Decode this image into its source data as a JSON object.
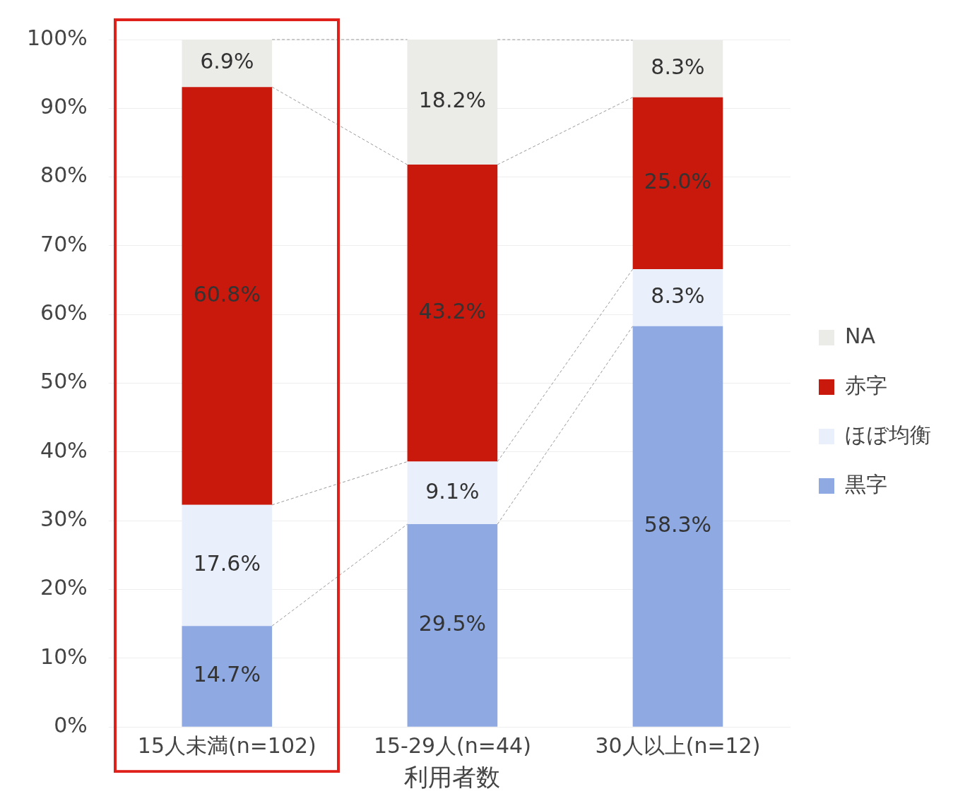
{
  "chart_data": {
    "type": "bar",
    "stacked": true,
    "xlabel": "利用者数",
    "categories": [
      "15人未満(n=102)",
      "15-29人(n=44)",
      "30人以上(n=12)"
    ],
    "series": [
      {
        "name": "黒字",
        "color": "#8fa9e2",
        "values": [
          14.7,
          29.5,
          58.3
        ],
        "value_labels": [
          "14.7%",
          "29.5%",
          "58.3%"
        ]
      },
      {
        "name": "ほぼ均衡",
        "color": "#e9effb",
        "values": [
          17.6,
          9.1,
          8.3
        ],
        "value_labels": [
          "17.6%",
          "9.1%",
          "8.3%"
        ]
      },
      {
        "name": "赤字",
        "color": "#c8190c",
        "values": [
          60.8,
          43.2,
          25.0
        ],
        "value_labels": [
          "60.8%",
          "43.2%",
          "25.0%"
        ]
      },
      {
        "name": "NA",
        "color": "#ebebe8",
        "values": [
          6.9,
          18.2,
          8.3
        ],
        "value_labels": [
          "6.9%",
          "18.2%",
          "8.3%"
        ]
      }
    ],
    "ylim": [
      0,
      100
    ],
    "yticks": [
      {
        "value": 0,
        "label": "0%"
      },
      {
        "value": 10,
        "label": "10%"
      },
      {
        "value": 20,
        "label": "20%"
      },
      {
        "value": 30,
        "label": "30%"
      },
      {
        "value": 40,
        "label": "40%"
      },
      {
        "value": 50,
        "label": "50%"
      },
      {
        "value": 60,
        "label": "60%"
      },
      {
        "value": 70,
        "label": "70%"
      },
      {
        "value": 80,
        "label": "80%"
      },
      {
        "value": 90,
        "label": "90%"
      },
      {
        "value": 100,
        "label": "100%"
      }
    ],
    "grid": "y",
    "legend": "right"
  }
}
